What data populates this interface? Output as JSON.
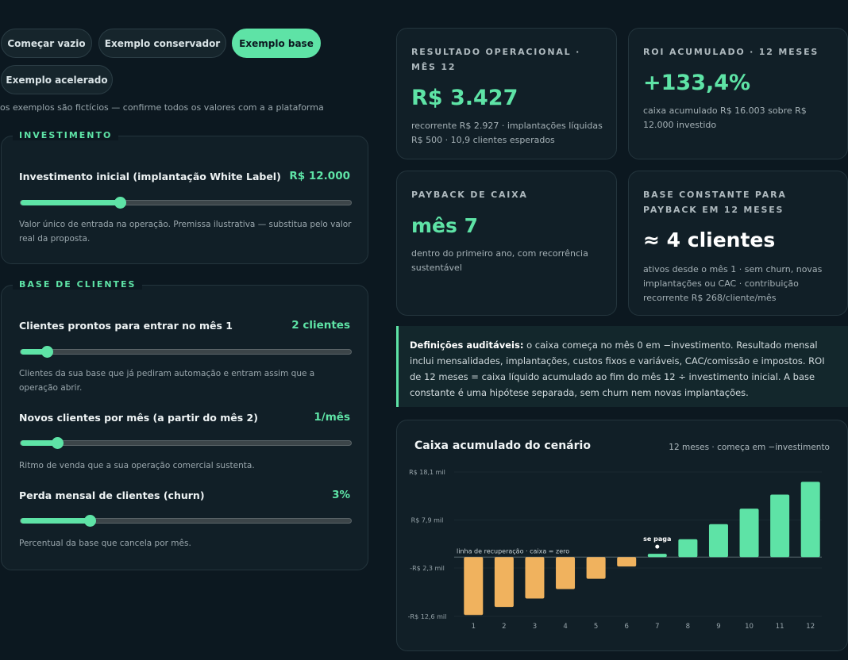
{
  "presets": [
    {
      "label": "Começar vazio",
      "active": false
    },
    {
      "label": "Exemplo conservador",
      "active": false
    },
    {
      "label": "Exemplo base",
      "active": true
    },
    {
      "label": "Exemplo acelerado",
      "active": false
    }
  ],
  "disclaimer": "os exemplos são fictícios — confirme todos os valores com a a plataforma",
  "investimento": {
    "legend": "INVESTIMENTO",
    "label": "Investimento inicial (implantação White Label)",
    "value": "R$ 12.000",
    "fraction": 0.3,
    "help": "Valor único de entrada na operação. Premissa ilustrativa — substitua pelo valor real da proposta."
  },
  "base": {
    "legend": "BASE DE CLIENTES",
    "rows": [
      {
        "label": "Clientes prontos para entrar no mês 1",
        "value": "2 clientes",
        "fraction": 0.08,
        "help": "Clientes da sua base que já pediram automação e entram assim que a operação abrir."
      },
      {
        "label": "Novos clientes por mês (a partir do mês 2)",
        "value": "1/mês",
        "fraction": 0.11,
        "help": "Ritmo de venda que a sua operação comercial sustenta."
      },
      {
        "label": "Perda mensal de clientes (churn)",
        "value": "3%",
        "fraction": 0.21,
        "help": "Percentual da base que cancela por mês."
      }
    ]
  },
  "kpis": {
    "resultado": {
      "label": "RESULTADO OPERACIONAL · MÊS 12",
      "value": "R$ 3.427",
      "sub": "recorrente R$ 2.927 · implantações líquidas R$ 500 · 10,9 clientes esperados"
    },
    "roi": {
      "label": "ROI ACUMULADO · 12 MESES",
      "value": "+133,4%",
      "sub": "caixa acumulado R$ 16.003 sobre R$ 12.000 investido"
    },
    "payback": {
      "label": "PAYBACK DE CAIXA",
      "value": "mês 7",
      "sub": "dentro do primeiro ano, com recorrência sustentável"
    },
    "base_constante": {
      "label": "BASE CONSTANTE PARA PAYBACK EM 12 MESES",
      "value": "≈ 4 clientes",
      "sub": "ativos desde o mês 1 · sem churn, novas implantações ou CAC · contribuição recorrente R$ 268/cliente/mês"
    }
  },
  "definicoes": {
    "bold": "Definições auditáveis:",
    "text": " o caixa começa no mês 0 em −investimento. Resultado mensal inclui mensalidades, implantações, custos fixos e variáveis, CAC/comissão e impostos. ROI de 12 meses = caixa líquido acumulado ao fim do mês 12 ÷ investimento inicial. A base constante é uma hipótese separada, sem churn nem novas implantações."
  },
  "chart": {
    "title": "Caixa acumulado do cenário",
    "note": "12 meses · começa em −investimento",
    "zero_label": "linha de recuperação · caixa = zero",
    "payback_label": "se paga",
    "colors": {
      "positive": "#5ee3a6",
      "negative": "#f0b25e"
    }
  },
  "chart_data": {
    "type": "bar",
    "categories": [
      "1",
      "2",
      "3",
      "4",
      "5",
      "6",
      "7",
      "8",
      "9",
      "10",
      "11",
      "12"
    ],
    "values": [
      -12300,
      -10600,
      -8800,
      -6800,
      -4600,
      -2000,
      700,
      3800,
      7000,
      10300,
      13300,
      16003
    ],
    "ytick_values": [
      18100,
      7900,
      -2300,
      -12600
    ],
    "ytick_labels": [
      "R$ 18,1 mil",
      "R$ 7,9 mil",
      "-R$ 2,3 mil",
      "-R$ 12,6 mil"
    ],
    "ylim": [
      -12600,
      18100
    ],
    "payback_month": "7"
  }
}
